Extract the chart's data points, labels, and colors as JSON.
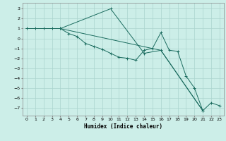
{
  "title": "",
  "xlabel": "Humidex (Indice chaleur)",
  "xlim": [
    -0.5,
    23.5
  ],
  "ylim": [
    -7.8,
    3.6
  ],
  "yticks": [
    3,
    2,
    1,
    0,
    -1,
    -2,
    -3,
    -4,
    -5,
    -6,
    -7
  ],
  "xticks": [
    0,
    1,
    2,
    3,
    4,
    5,
    6,
    7,
    8,
    9,
    10,
    11,
    12,
    13,
    14,
    15,
    16,
    17,
    18,
    19,
    20,
    21,
    22,
    23
  ],
  "bg_color": "#cceee8",
  "grid_color": "#aad4ce",
  "line_color": "#1a6b5e",
  "series1": [
    [
      0,
      1
    ],
    [
      1,
      1
    ],
    [
      2,
      1
    ],
    [
      3,
      1
    ],
    [
      4,
      1
    ],
    [
      5,
      0.5
    ],
    [
      6,
      0.2
    ],
    [
      7,
      -0.5
    ],
    [
      8,
      -0.8
    ],
    [
      9,
      -1.1
    ],
    [
      10,
      -1.5
    ],
    [
      11,
      -1.9
    ],
    [
      12,
      -2.0
    ],
    [
      13,
      -2.2
    ],
    [
      14,
      -1.2
    ],
    [
      15,
      -1.0
    ],
    [
      16,
      0.6
    ],
    [
      17,
      -1.2
    ],
    [
      18,
      -1.3
    ],
    [
      19,
      -3.8
    ],
    [
      20,
      -5.0
    ],
    [
      21,
      -7.3
    ],
    [
      22,
      -6.5
    ],
    [
      23,
      -6.8
    ]
  ],
  "series2": [
    [
      0,
      1
    ],
    [
      4,
      1
    ],
    [
      10,
      3.0
    ],
    [
      14,
      -1.5
    ],
    [
      16,
      -1.2
    ],
    [
      21,
      -7.3
    ]
  ],
  "series3": [
    [
      0,
      1
    ],
    [
      4,
      1
    ],
    [
      16,
      -1.2
    ],
    [
      21,
      -7.3
    ]
  ]
}
